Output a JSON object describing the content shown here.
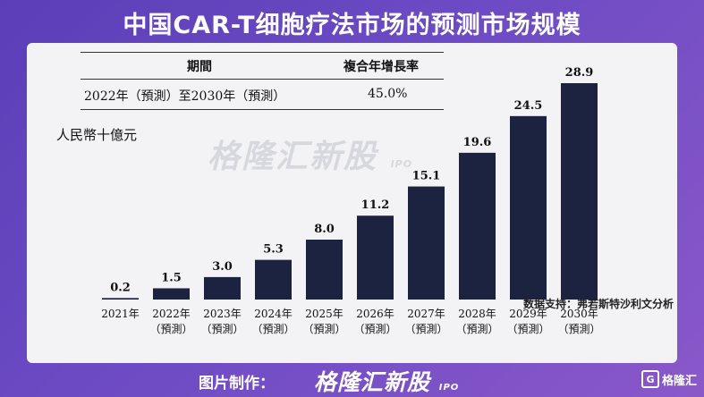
{
  "title": "中国CAR-T细胞疗法市场的预测市场规模",
  "table": {
    "col1_header": "期間",
    "col2_header": "複合年增長率",
    "period": "2022年（預測）至2030年（預測）",
    "cagr": "45.0%"
  },
  "unit_label": "人民幣十億元",
  "watermark": {
    "text": "格隆汇新股",
    "sub": "IPO"
  },
  "chart_data": {
    "type": "bar",
    "categories": [
      "2021年",
      "2022年",
      "2023年",
      "2024年",
      "2025年",
      "2026年",
      "2027年",
      "2028年",
      "2029年",
      "2030年"
    ],
    "sublabels": [
      "",
      "（預測）",
      "（預測）",
      "（預測）",
      "（預測）",
      "（預測）",
      "（預測）",
      "（預測）",
      "（預測）",
      "（預測）"
    ],
    "values": [
      0.2,
      1.5,
      3.0,
      5.3,
      8.0,
      11.2,
      15.1,
      19.6,
      24.5,
      28.9
    ],
    "value_labels": [
      "0.2",
      "1.5",
      "3.0",
      "5.3",
      "8.0",
      "11.2",
      "15.1",
      "19.6",
      "24.5",
      "28.9"
    ],
    "bar_color": "#1b2340",
    "ylim": [
      0,
      30
    ]
  },
  "source": "数据支持：弗若斯特沙利文分析",
  "footer": {
    "label": "图片制作：",
    "brand": "格隆汇新股",
    "brand_sub": "IPO"
  },
  "corner_logo": {
    "mark": "G",
    "text": "格隆汇"
  }
}
